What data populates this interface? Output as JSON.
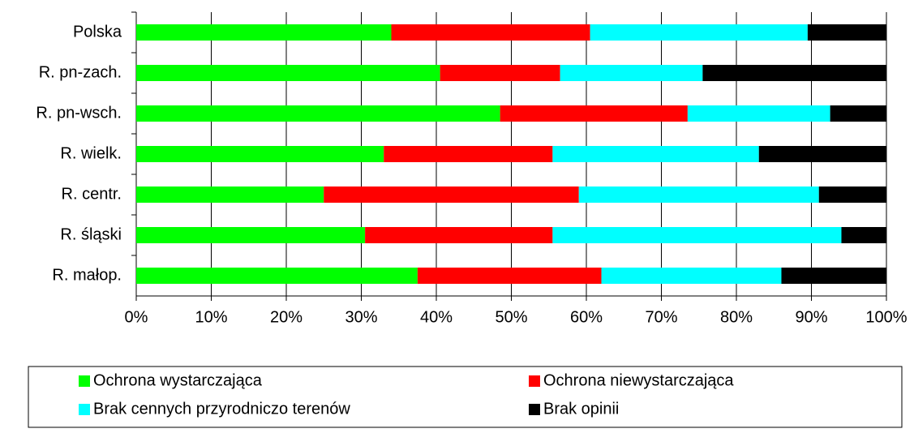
{
  "chart_data": {
    "type": "stacked-bar-horizontal",
    "categories": [
      "Polska",
      "R. pn-zach.",
      "R. pn-wsch.",
      "R. wielk.",
      "R. centr.",
      "R. śląski",
      "R. małop."
    ],
    "series": [
      {
        "name": "Ochrona wystarczająca",
        "color": "#00ff00",
        "values": [
          34,
          40.5,
          48.5,
          33,
          25,
          30.5,
          37.5
        ]
      },
      {
        "name": "Ochrona niewystarczająca",
        "color": "#ff0000",
        "values": [
          26.5,
          16,
          25,
          22.5,
          34,
          25,
          24.5
        ]
      },
      {
        "name": "Brak cennych przyrodniczo terenów",
        "color": "#00ffff",
        "values": [
          29,
          19,
          19,
          27.5,
          32,
          38.5,
          24
        ]
      },
      {
        "name": "Brak opinii",
        "color": "#000000",
        "values": [
          10.5,
          24.5,
          7.5,
          17,
          9,
          6,
          14
        ]
      }
    ],
    "xlim": [
      0,
      100
    ],
    "xticks": [
      {
        "value": 0,
        "label": "0%"
      },
      {
        "value": 10,
        "label": "10%"
      },
      {
        "value": 20,
        "label": "20%"
      },
      {
        "value": 30,
        "label": "30%"
      },
      {
        "value": 40,
        "label": "40%"
      },
      {
        "value": 50,
        "label": "50%"
      },
      {
        "value": 60,
        "label": "60%"
      },
      {
        "value": 70,
        "label": "70%"
      },
      {
        "value": 80,
        "label": "80%"
      },
      {
        "value": 90,
        "label": "90%"
      },
      {
        "value": 100,
        "label": "100%"
      }
    ],
    "grid": true,
    "legend": "bottom"
  }
}
